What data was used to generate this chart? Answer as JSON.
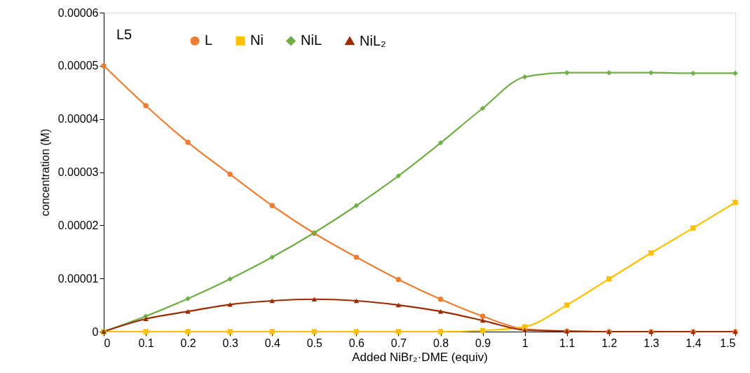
{
  "chart_data": {
    "type": "line",
    "xlabel": "Added NiBr₂·DME (equiv)",
    "ylabel": "concentration  (M)",
    "annotations": [
      "L5"
    ],
    "x": [
      0,
      0.1,
      0.2,
      0.3,
      0.4,
      0.5,
      0.6,
      0.7,
      0.8,
      0.9,
      1,
      1.1,
      1.2,
      1.3,
      1.4,
      1.5
    ],
    "series": [
      {
        "name": "L",
        "color": "#ed7d31",
        "marker": "circle",
        "values": [
          5e-05,
          4.25e-05,
          3.56e-05,
          2.96e-05,
          2.37e-05,
          1.85e-05,
          1.4e-05,
          9.8e-06,
          6.1e-06,
          2.9e-06,
          5e-07,
          1e-07,
          0,
          0,
          0,
          0
        ]
      },
      {
        "name": "Ni",
        "color": "#ffc000",
        "marker": "square",
        "values": [
          0,
          0,
          0,
          0,
          0,
          0,
          0,
          0,
          0,
          2e-07,
          9e-07,
          5e-06,
          9.9e-06,
          1.48e-05,
          1.95e-05,
          2.43e-05
        ]
      },
      {
        "name": "NiL",
        "color": "#70ad47",
        "marker": "diamond",
        "values": [
          0,
          2.9e-06,
          6.2e-06,
          9.9e-06,
          1.4e-05,
          1.86e-05,
          2.37e-05,
          2.93e-05,
          3.55e-05,
          4.2e-05,
          4.79e-05,
          4.87e-05,
          4.87e-05,
          4.87e-05,
          4.86e-05,
          4.86e-05
        ]
      },
      {
        "name": "NiL₂",
        "color": "#9c2a00",
        "marker": "triangle",
        "values": [
          0,
          2.4e-06,
          3.8e-06,
          5.1e-06,
          5.8e-06,
          6.1e-06,
          5.8e-06,
          5e-06,
          3.8e-06,
          2.1e-06,
          3e-07,
          1e-07,
          0,
          0,
          0,
          0
        ]
      }
    ],
    "xlim": [
      0,
      1.5
    ],
    "xticks": [
      0,
      0.1,
      0.2,
      0.3,
      0.4,
      0.5,
      0.6,
      0.7,
      0.8,
      0.9,
      1,
      1.1,
      1.2,
      1.3,
      1.4,
      1.5
    ],
    "ylim": [
      0,
      6e-05
    ],
    "yticks": [
      0,
      {
        "value": 1e-05,
        "label": "0.00001"
      },
      {
        "value": 2e-05,
        "label": "0.00002"
      },
      {
        "value": 3e-05,
        "label": "0.00003"
      },
      {
        "value": 4e-05,
        "label": "0.00004"
      },
      {
        "value": 5e-05,
        "label": "0.00005"
      },
      {
        "value": 6e-05,
        "label": "0.00006"
      }
    ],
    "grid": false,
    "legend": "top",
    "line_style": "solid"
  }
}
